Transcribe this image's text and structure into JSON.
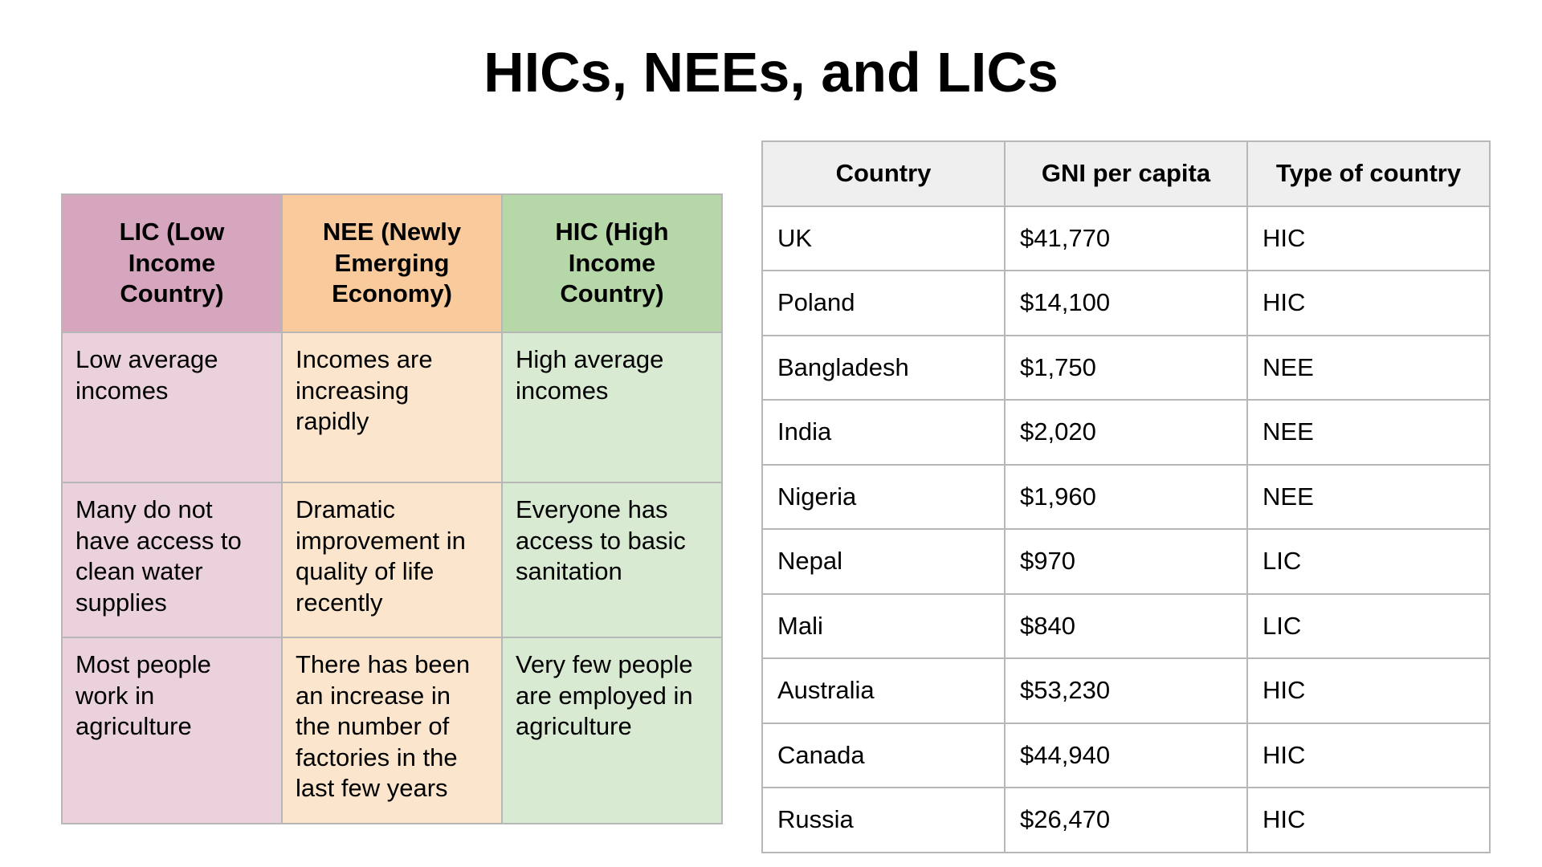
{
  "title": "HICs, NEEs, and LICs",
  "comparison_table": {
    "columns": [
      {
        "heading": "LIC (Low Income Country)",
        "header_color": "#d5a6bd",
        "cell_color": "#ead1dc"
      },
      {
        "heading": "NEE (Newly Emerging Economy)",
        "header_color": "#f9cb9c",
        "cell_color": "#fce5cd"
      },
      {
        "heading": "HIC (High Income Country)",
        "header_color": "#b6d7a8",
        "cell_color": "#d9ead3"
      }
    ],
    "rows": [
      [
        "Low average incomes",
        "Incomes are increasing rapidly",
        "High average incomes"
      ],
      [
        "Many do not have access to clean water supplies",
        "Dramatic improvement in quality of life recently",
        "Everyone has access to basic sanitation"
      ],
      [
        "Most people work in agriculture",
        "There has been an increase in the number of factories in the last few years",
        "Very few people are employed in agriculture"
      ]
    ]
  },
  "gni_table": {
    "headers": [
      "Country",
      "GNI per capita",
      "Type of country"
    ],
    "rows": [
      [
        "UK",
        "$41,770",
        "HIC"
      ],
      [
        "Poland",
        "$14,100",
        "HIC"
      ],
      [
        "Bangladesh",
        "$1,750",
        "NEE"
      ],
      [
        "India",
        "$2,020",
        "NEE"
      ],
      [
        "Nigeria",
        "$1,960",
        "NEE"
      ],
      [
        "Nepal",
        "$970",
        "LIC"
      ],
      [
        "Mali",
        "$840",
        "LIC"
      ],
      [
        "Australia",
        "$53,230",
        "HIC"
      ],
      [
        "Canada",
        "$44,940",
        "HIC"
      ],
      [
        "Russia",
        "$26,470",
        "HIC"
      ]
    ]
  }
}
